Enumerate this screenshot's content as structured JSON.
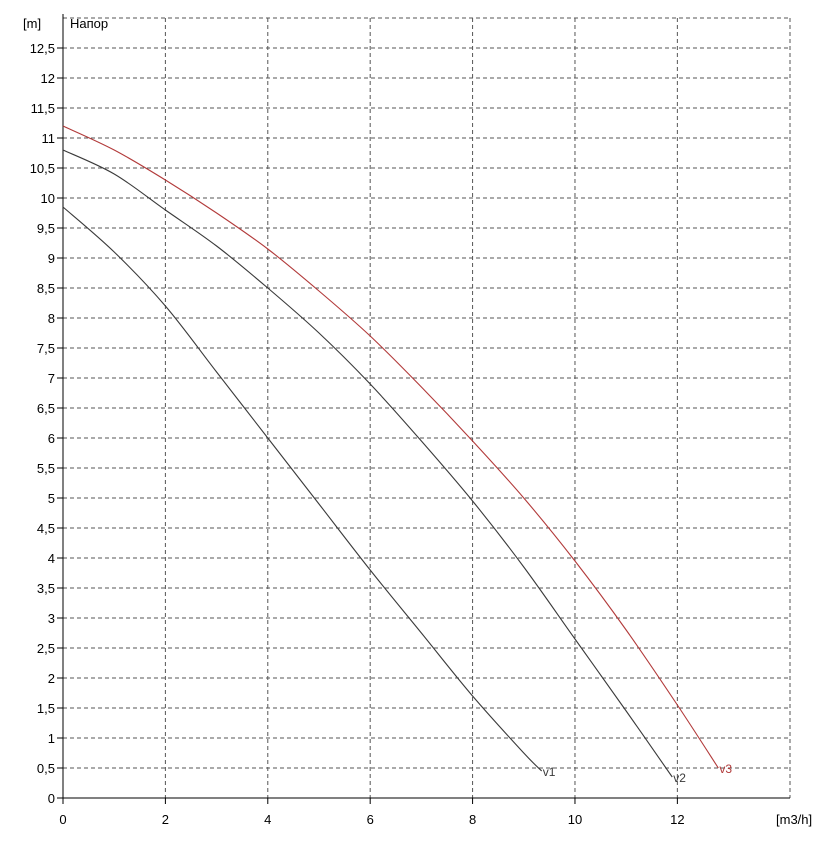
{
  "chart_data": {
    "type": "line",
    "title": "Напор",
    "xlabel": "[m3/h]",
    "ylabel": "[m]",
    "xlim": [
      0,
      14.2
    ],
    "ylim": [
      0,
      13
    ],
    "x_ticks": [
      0,
      2,
      4,
      6,
      8,
      10,
      12
    ],
    "x_tick_labels": [
      "0",
      "2",
      "4",
      "6",
      "8",
      "10",
      "12"
    ],
    "y_ticks": [
      0,
      0.5,
      1,
      1.5,
      2,
      2.5,
      3,
      3.5,
      4,
      4.5,
      5,
      5.5,
      6,
      6.5,
      7,
      7.5,
      8,
      8.5,
      9,
      9.5,
      10,
      10.5,
      11,
      11.5,
      12,
      12.5
    ],
    "y_tick_labels": [
      "0",
      "0,5",
      "1",
      "1,5",
      "2",
      "2,5",
      "3",
      "3,5",
      "4",
      "4,5",
      "5",
      "5,5",
      "6",
      "6,5",
      "7",
      "7,5",
      "8",
      "8,5",
      "9",
      "9,5",
      "10",
      "10,5",
      "11",
      "11,5",
      "12",
      "12,5"
    ],
    "grid": true,
    "series": [
      {
        "name": "v1",
        "color": "#3a3a3a",
        "x": [
          0,
          1,
          2,
          3,
          4,
          5,
          6,
          7,
          8,
          9,
          9.35
        ],
        "y": [
          9.85,
          9.1,
          8.2,
          7.1,
          6.0,
          4.9,
          3.8,
          2.75,
          1.7,
          0.75,
          0.45
        ]
      },
      {
        "name": "v2",
        "color": "#3a3a3a",
        "x": [
          0,
          1,
          2,
          3,
          4,
          5,
          6,
          7,
          8,
          9,
          10,
          11,
          11.9
        ],
        "y": [
          10.8,
          10.4,
          9.8,
          9.2,
          8.5,
          7.75,
          6.9,
          5.95,
          4.95,
          3.85,
          2.65,
          1.45,
          0.35
        ]
      },
      {
        "name": "v3",
        "color": "#b23a3a",
        "x": [
          0,
          1,
          2,
          3,
          4,
          5,
          6,
          7,
          8,
          9,
          10,
          11,
          12,
          12.8
        ],
        "y": [
          11.2,
          10.8,
          10.3,
          9.75,
          9.15,
          8.45,
          7.7,
          6.85,
          5.95,
          5.0,
          3.95,
          2.8,
          1.55,
          0.5
        ]
      }
    ]
  }
}
